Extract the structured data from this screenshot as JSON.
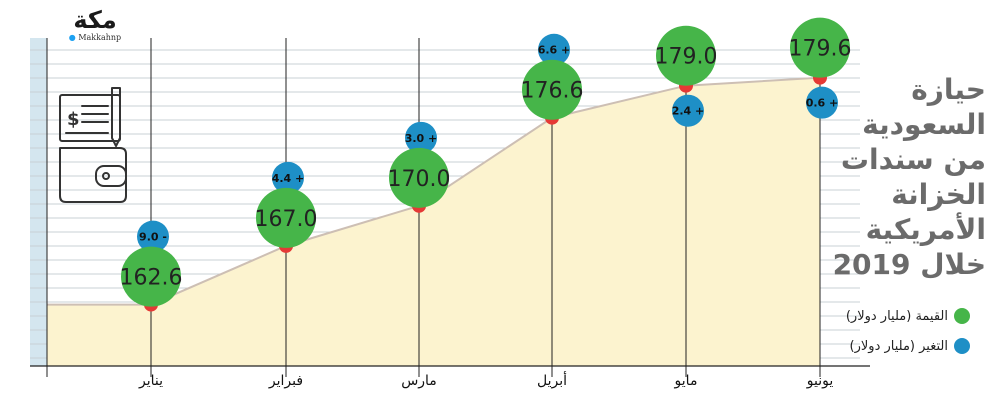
{
  "brand": {
    "mark": "مكة",
    "handle": "Makkahnp"
  },
  "title_lines": [
    "حيازة",
    "السعودية",
    "من سندات",
    "الخزانة",
    "الأمريكية",
    "خلال 2019"
  ],
  "legend": [
    {
      "label": "القيمة (مليار دولار)",
      "color": "#46b549"
    },
    {
      "label": "التغير (مليار دولار)",
      "color": "#1e8fc6"
    }
  ],
  "chart_data": {
    "type": "area",
    "categories": [
      "يناير",
      "فبراير",
      "مارس",
      "أبريل",
      "مايو",
      "يونيو"
    ],
    "series": [
      {
        "name": "القيمة (مليار دولار)",
        "values": [
          162.6,
          167.0,
          170.0,
          176.6,
          179.0,
          179.6
        ],
        "labels": [
          "162.6",
          "167.0",
          "170.0",
          "176.6",
          "179.0",
          "179.6"
        ]
      },
      {
        "name": "التغير (مليار دولار)",
        "values": [
          -9.0,
          4.4,
          3.0,
          6.6,
          2.4,
          0.6
        ],
        "labels": [
          "9.0 -",
          "4.4 +",
          "3.0 +",
          "6.6 +",
          "2.4 +",
          "0.6 +"
        ]
      }
    ],
    "ylim": [
      158,
      181
    ],
    "colors": {
      "area": "#fcf3cf",
      "line": "#cdbfb4",
      "point": "#e53935",
      "value_bubble": "#46b549",
      "change_bubble": "#1e8fc6",
      "grid": "#c9d0d6",
      "left_band": "#d4e6ef"
    }
  }
}
